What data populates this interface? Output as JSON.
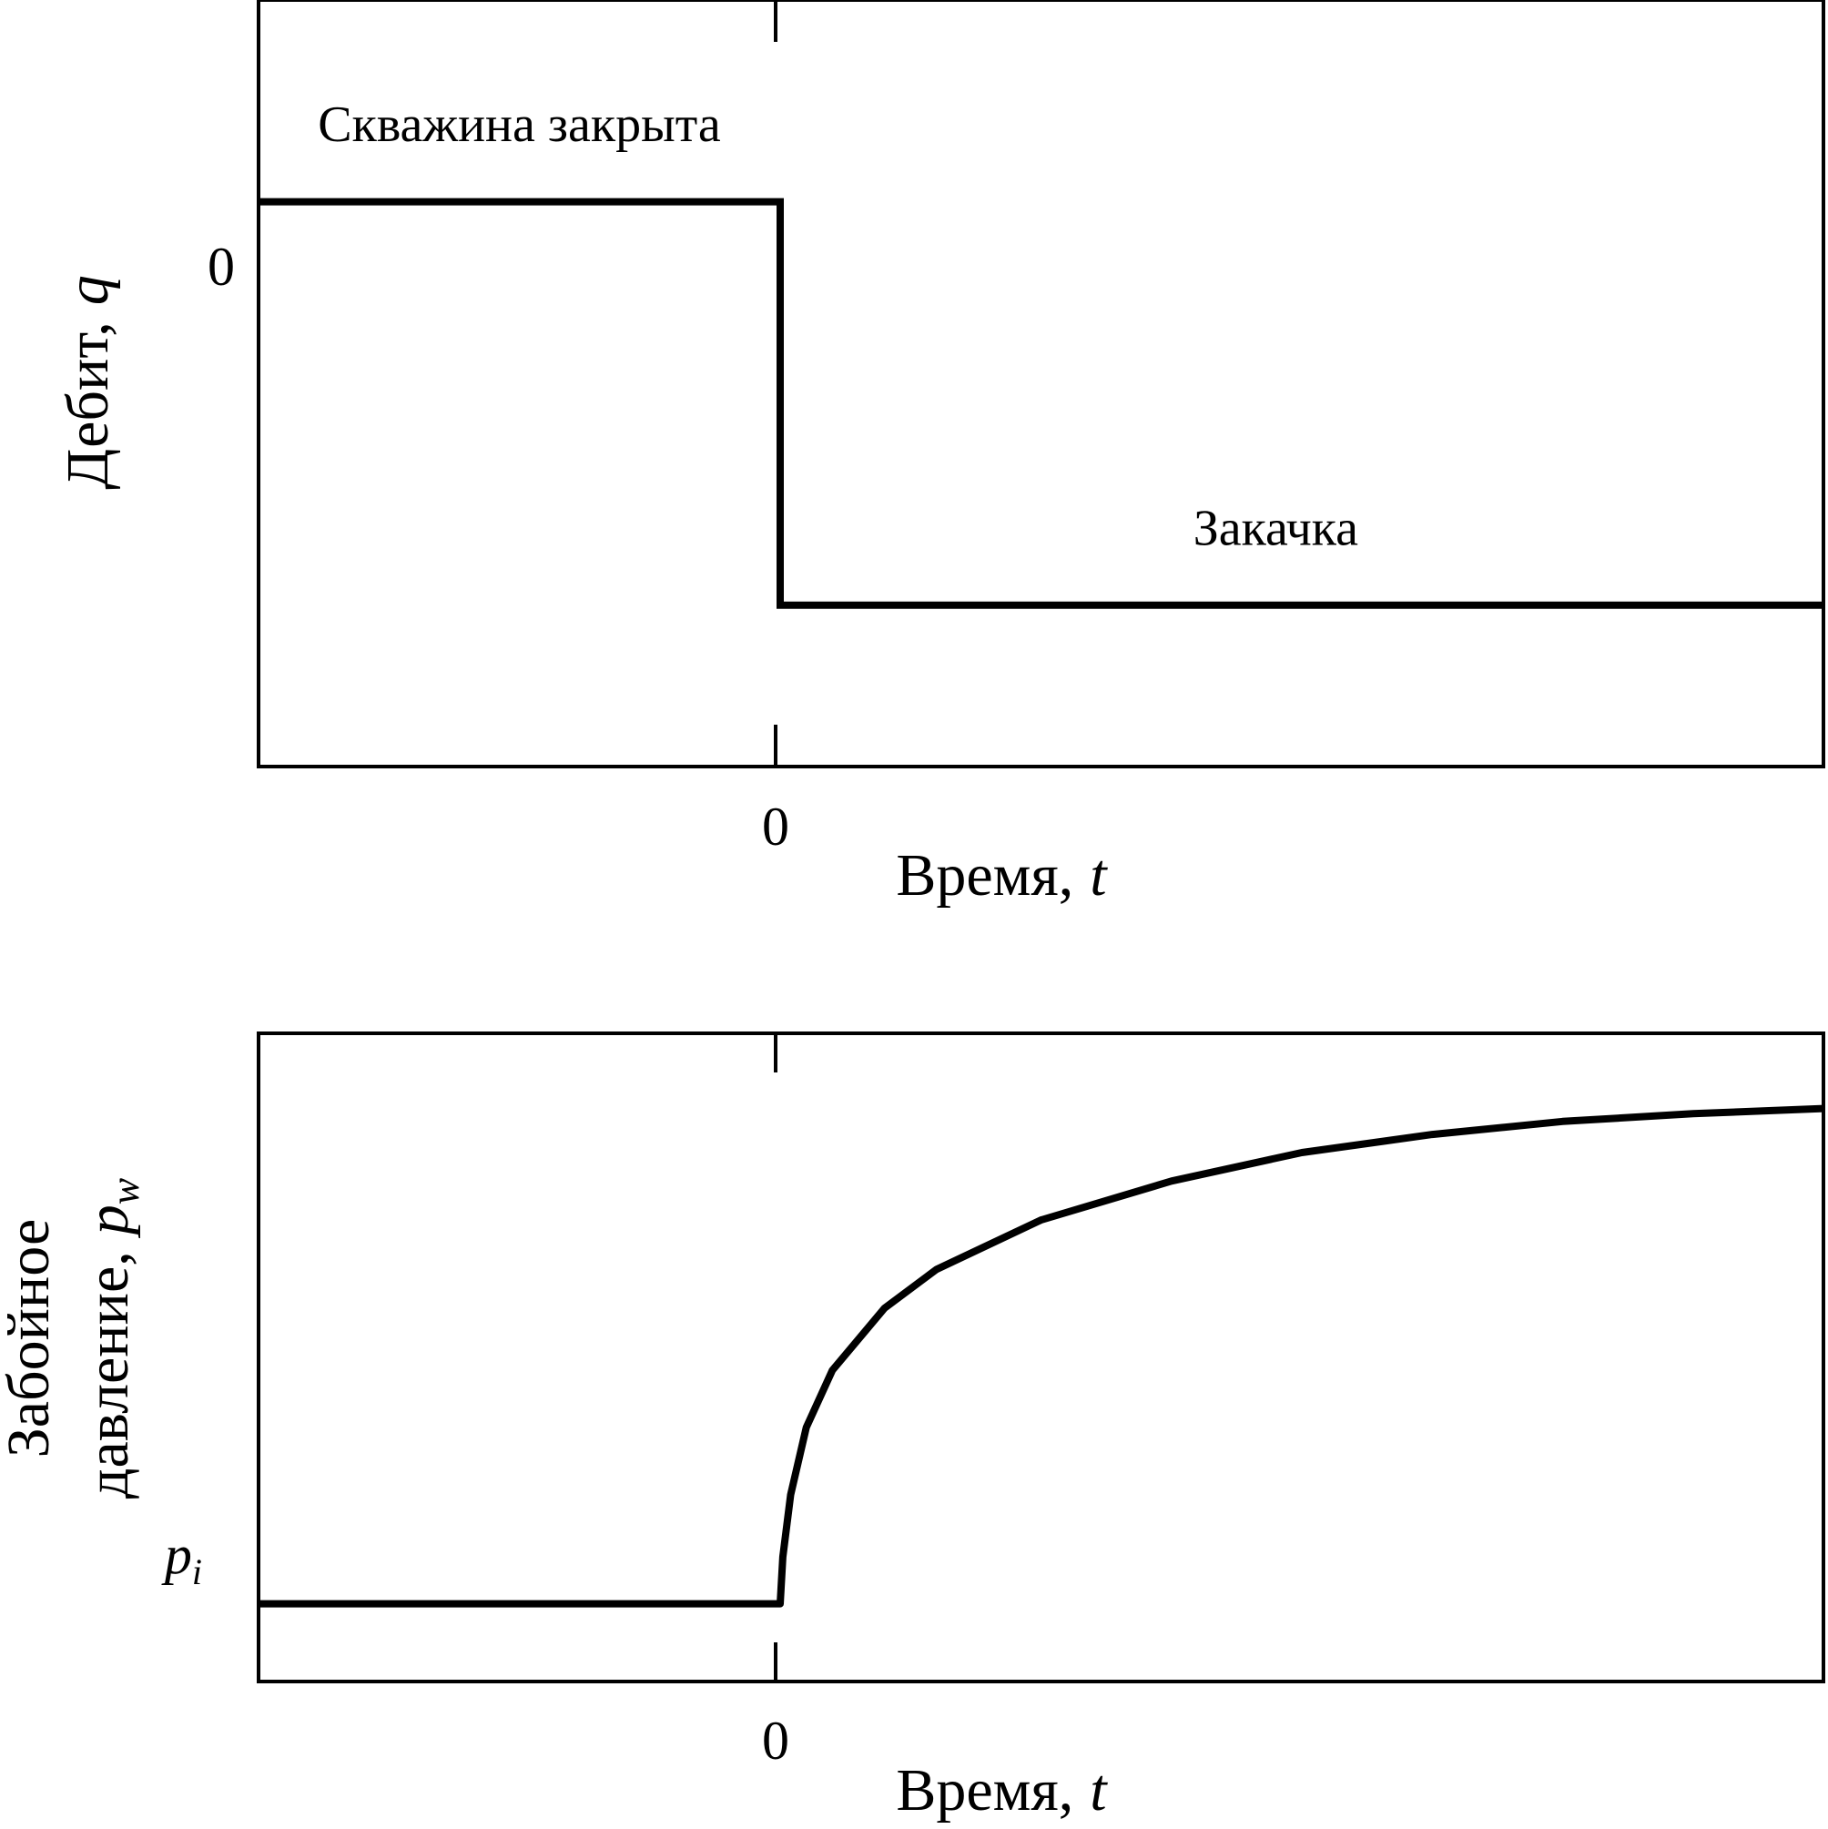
{
  "chart_data": [
    {
      "type": "line",
      "title": "",
      "xlabel": "Время,",
      "xlabel_symbol": "t",
      "ylabel": "Дебит,",
      "ylabel_symbol": "q",
      "x_ticks": [
        "0"
      ],
      "y_ticks": [
        "0"
      ],
      "xlim": [
        -1,
        2
      ],
      "ylim": [
        -1.4,
        0.5
      ],
      "grid": false,
      "series": [
        {
          "x": [
            -1,
            0,
            0,
            2
          ],
          "y": [
            0,
            0,
            -1,
            -1
          ]
        }
      ],
      "annotations": [
        {
          "text": "Скважина закрыта",
          "x": -0.5,
          "y": 0.15
        },
        {
          "text": "Закачка",
          "x": 0.95,
          "y": -0.85
        }
      ]
    },
    {
      "type": "line",
      "title": "",
      "xlabel": "Время,",
      "xlabel_symbol": "t",
      "ylabel_line1": "Забойное",
      "ylabel_line2": "давление,",
      "ylabel_symbol": "p",
      "ylabel_subscript": "w",
      "x_ticks": [
        "0"
      ],
      "y_ticks": [
        {
          "symbol": "p",
          "subscript": "i"
        }
      ],
      "xlim": [
        -1,
        2
      ],
      "ylim": [
        -0.15,
        1.1
      ],
      "grid": false,
      "series": [
        {
          "x": [
            -1,
            0,
            0.005,
            0.02,
            0.05,
            0.1,
            0.2,
            0.3,
            0.5,
            0.75,
            1.0,
            1.25,
            1.5,
            1.75,
            2.0
          ],
          "y": [
            0,
            0,
            0.09,
            0.21,
            0.34,
            0.45,
            0.57,
            0.645,
            0.74,
            0.815,
            0.87,
            0.905,
            0.93,
            0.945,
            0.955
          ]
        }
      ]
    }
  ]
}
